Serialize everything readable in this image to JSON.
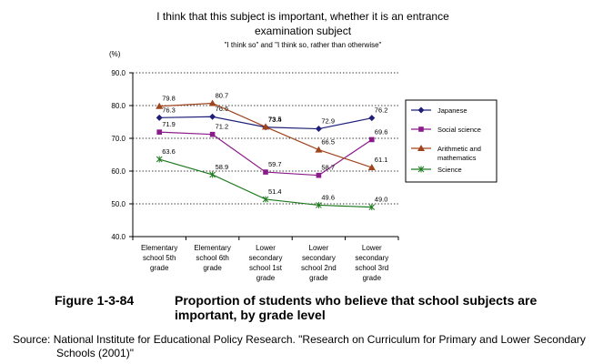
{
  "chart_data": {
    "type": "line",
    "title": "I think that this subject is important, whether it is an entrance examination subject",
    "title_lines": [
      "I think that this subject is important, whether it is an entrance",
      "examination subject"
    ],
    "subtitle": "\"I think so\" and \"I think so, rather than otherwise\"",
    "ylabel": "(%)",
    "xlabel": "",
    "ylim": [
      40,
      90
    ],
    "yticks": [
      "40.0",
      "50.0",
      "60.0",
      "70.0",
      "80.0",
      "90.0"
    ],
    "grid": true,
    "legend_position": "right",
    "categories": [
      [
        "Elementary",
        "school 5th",
        "grade"
      ],
      [
        "Elementary",
        "school 6th",
        "grade"
      ],
      [
        "Lower",
        "secondary",
        "school 1st",
        "grade"
      ],
      [
        "Lower",
        "secondary",
        "school 2nd",
        "grade"
      ],
      [
        "Lower",
        "secondary",
        "school 3rd",
        "grade"
      ]
    ],
    "series": [
      {
        "name": "Japanese",
        "color": "#1f1f7a",
        "marker": "diamond",
        "values": [
          76.3,
          76.6,
          73.4,
          72.9,
          76.2
        ],
        "labels": [
          "76.3",
          "76.6",
          "73.4",
          "72.9",
          "76.2"
        ]
      },
      {
        "name": "Social science",
        "color": "#8b1a8b",
        "marker": "square",
        "values": [
          71.9,
          71.2,
          59.7,
          58.7,
          69.6
        ],
        "labels": [
          "71.9",
          "71.2",
          "59.7",
          "58.7",
          "69.6"
        ]
      },
      {
        "name": "Arithmetic and mathematics",
        "legend_lines": [
          "Arithmetic and",
          "mathematics"
        ],
        "color": "#a0441e",
        "marker": "triangle",
        "values": [
          79.8,
          80.7,
          73.5,
          66.5,
          61.1
        ],
        "labels": [
          "79.8",
          "80.7",
          "73.5",
          "66.5",
          "61.1"
        ]
      },
      {
        "name": "Science",
        "color": "#1e7a1e",
        "marker": "star",
        "values": [
          63.6,
          58.9,
          51.4,
          49.6,
          49.0
        ],
        "labels": [
          "63.6",
          "58.9",
          "51.4",
          "49.6",
          "49.0"
        ]
      }
    ]
  },
  "caption": {
    "label": "Figure 1-3-84",
    "text": "Proportion of students who believe that school subjects are important, by grade level"
  },
  "source": {
    "line1": "Source: National Institute for Educational Policy Research. \"Research on Curriculum for Primary and Lower Secondary",
    "line2": "Schools (2001)\""
  }
}
